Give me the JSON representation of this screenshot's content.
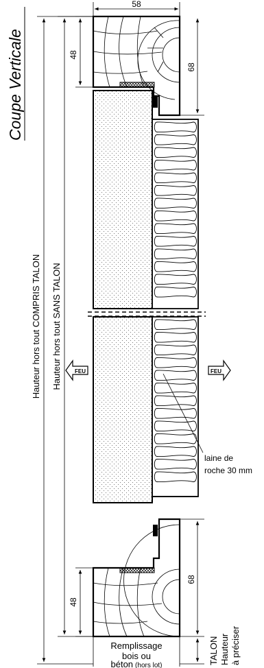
{
  "title": "Coupe Verticale",
  "dimensions": {
    "top_width": "58",
    "top_frame_inner": "48",
    "top_frame_outer": "68",
    "bottom_frame_inner": "48",
    "bottom_frame_outer": "68"
  },
  "labels": {
    "height_with_talon": "Hauteur hors tout COMPRIS TALON",
    "height_without_talon": "Hauteur hors tout SANS TALON",
    "fire_left": "FEU",
    "fire_right": "FEU",
    "insulation_line1": "laine de",
    "insulation_line2": "roche 30 mm",
    "fill_line1": "Remplissage",
    "fill_line2": "bois ou",
    "fill_line3_main": "béton",
    "fill_line3_note": "(hors lot)",
    "talon_1": "TALON",
    "talon_2": "Hauteur",
    "talon_3": "à préciser"
  }
}
